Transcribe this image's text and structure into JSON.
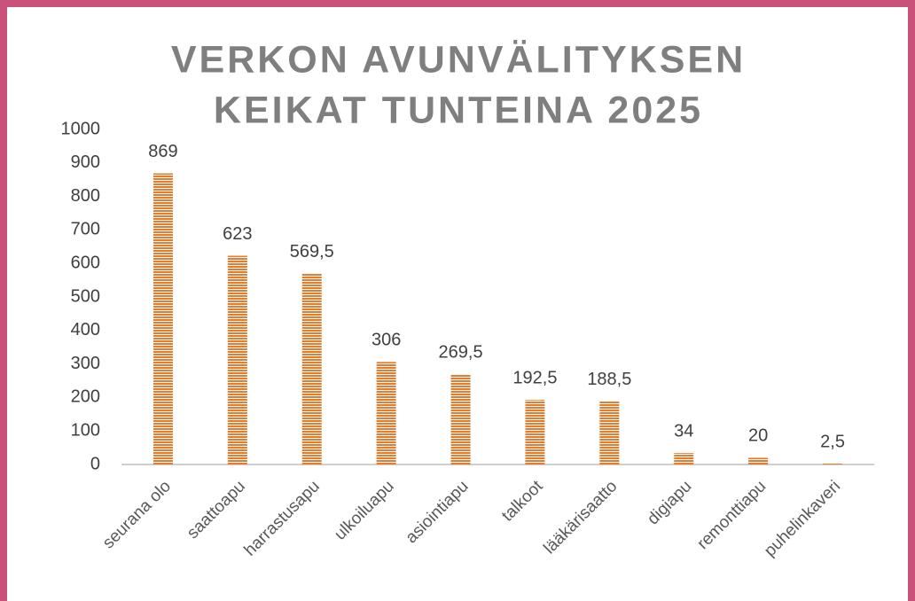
{
  "chart_data": {
    "type": "bar",
    "title": [
      "VERKON AVUNVÄLITYKSEN",
      "KEIKAT TUNTEINA 2025"
    ],
    "categories": [
      "seurana olo",
      "saattoapu",
      "harrastusapu",
      "ulkoiluapu",
      "asiointiapu",
      "talkoot",
      "lääkärisaatto",
      "digiapu",
      "remonttiapu",
      "puhelinkaveri"
    ],
    "values": [
      869,
      623,
      569.5,
      306,
      269.5,
      192.5,
      188.5,
      34,
      20,
      2.5
    ],
    "value_labels": [
      "869",
      "623",
      "569,5",
      "306",
      "269,5",
      "192,5",
      "188,5",
      "34",
      "20",
      "2,5"
    ],
    "color": "#e97b2c",
    "ylim": [
      0,
      1000
    ],
    "yticks": [
      0,
      100,
      200,
      300,
      400,
      500,
      600,
      700,
      800,
      900,
      1000
    ],
    "grid": false
  }
}
